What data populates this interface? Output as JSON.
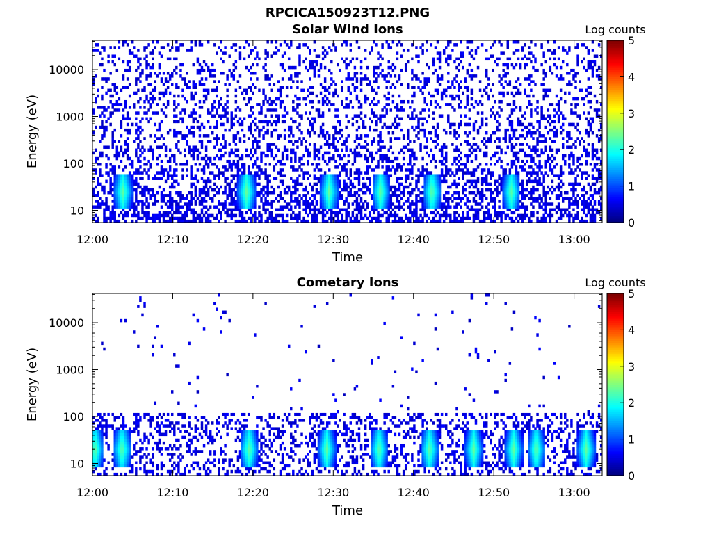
{
  "figure_title": "RPCICA150923T12.PNG",
  "chart_data": [
    {
      "type": "heatmap",
      "title": "Solar Wind Ions",
      "xlabel": "Time",
      "ylabel": "Energy (eV)",
      "y_scale": "log",
      "ylim": [
        5.5,
        42000
      ],
      "y_ticks": [
        10,
        100,
        1000,
        10000
      ],
      "y_tick_labels": [
        "10",
        "100",
        "1000",
        "10000"
      ],
      "x_range_minutes": [
        0,
        63.5
      ],
      "x_ticks": [
        0,
        10,
        20,
        30,
        40,
        50,
        60
      ],
      "x_tick_labels": [
        "12:00",
        "12:10",
        "12:20",
        "12:30",
        "12:40",
        "12:50",
        "13:00"
      ],
      "colorbar": {
        "label": "Log counts",
        "range": [
          0,
          5
        ],
        "ticks": [
          "0",
          "1",
          "2",
          "3",
          "4",
          "5"
        ],
        "colormap": "jet"
      },
      "description_values": {
        "bright_spots_minutes": [
          3.8,
          19.2,
          29.5,
          35.9,
          42.3,
          52.2
        ],
        "bright_spot_energy_eV": 25,
        "background_log_counts": 0.3
      }
    },
    {
      "type": "heatmap",
      "title": "Cometary Ions",
      "xlabel": "Time",
      "ylabel": "Energy (eV)",
      "y_scale": "log",
      "ylim": [
        5.5,
        42000
      ],
      "y_ticks": [
        10,
        100,
        1000,
        10000
      ],
      "y_tick_labels": [
        "10",
        "100",
        "1000",
        "10000"
      ],
      "x_range_minutes": [
        0,
        63.5
      ],
      "x_ticks": [
        0,
        10,
        20,
        30,
        40,
        50,
        60
      ],
      "x_tick_labels": [
        "12:00",
        "12:10",
        "12:20",
        "12:30",
        "12:40",
        "12:50",
        "13:00"
      ],
      "colorbar": {
        "label": "Log counts",
        "range": [
          0,
          5
        ],
        "ticks": [
          "0",
          "1",
          "2",
          "3",
          "4",
          "5"
        ],
        "colormap": "jet"
      },
      "description_values": {
        "bright_spots_minutes": [
          0.3,
          3.7,
          19.5,
          29.2,
          35.7,
          42.0,
          47.5,
          52.5,
          55.3,
          61.5
        ],
        "bright_spot_energy_eV": 20,
        "background_log_counts": 0.3
      }
    }
  ]
}
